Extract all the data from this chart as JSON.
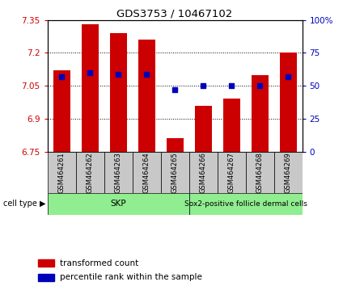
{
  "title": "GDS3753 / 10467102",
  "samples": [
    "GSM464261",
    "GSM464262",
    "GSM464263",
    "GSM464264",
    "GSM464265",
    "GSM464266",
    "GSM464267",
    "GSM464268",
    "GSM464269"
  ],
  "transformed_count": [
    7.12,
    7.33,
    7.29,
    7.26,
    6.81,
    6.96,
    6.99,
    7.1,
    7.2
  ],
  "percentile_rank": [
    57,
    60,
    59,
    59,
    47,
    50,
    50,
    50,
    57
  ],
  "ylim_left": [
    6.75,
    7.35
  ],
  "ylim_right": [
    0,
    100
  ],
  "yticks_left": [
    6.75,
    6.9,
    7.05,
    7.2,
    7.35
  ],
  "yticks_left_labels": [
    "6.75",
    "6.9",
    "7.05",
    "7.2",
    "7.35"
  ],
  "yticks_right": [
    0,
    25,
    50,
    75,
    100
  ],
  "yticks_right_labels": [
    "0",
    "25",
    "50",
    "75",
    "100%"
  ],
  "skp_samples": [
    0,
    1,
    2,
    3,
    4
  ],
  "sox2_samples": [
    5,
    6,
    7,
    8
  ],
  "skp_label": "SKP",
  "sox2_label": "Sox2-positive follicle dermal cells",
  "cell_type_label": "cell type",
  "bar_color": "#CC0000",
  "dot_color": "#0000BB",
  "bar_width": 0.6,
  "legend_bar_label": "transformed count",
  "legend_dot_label": "percentile rank within the sample",
  "background_color": "#ffffff",
  "left_axis_color": "#CC0000",
  "right_axis_color": "#0000BB",
  "cell_type_bg": "#90EE90",
  "sample_label_bg": "#C8C8C8"
}
